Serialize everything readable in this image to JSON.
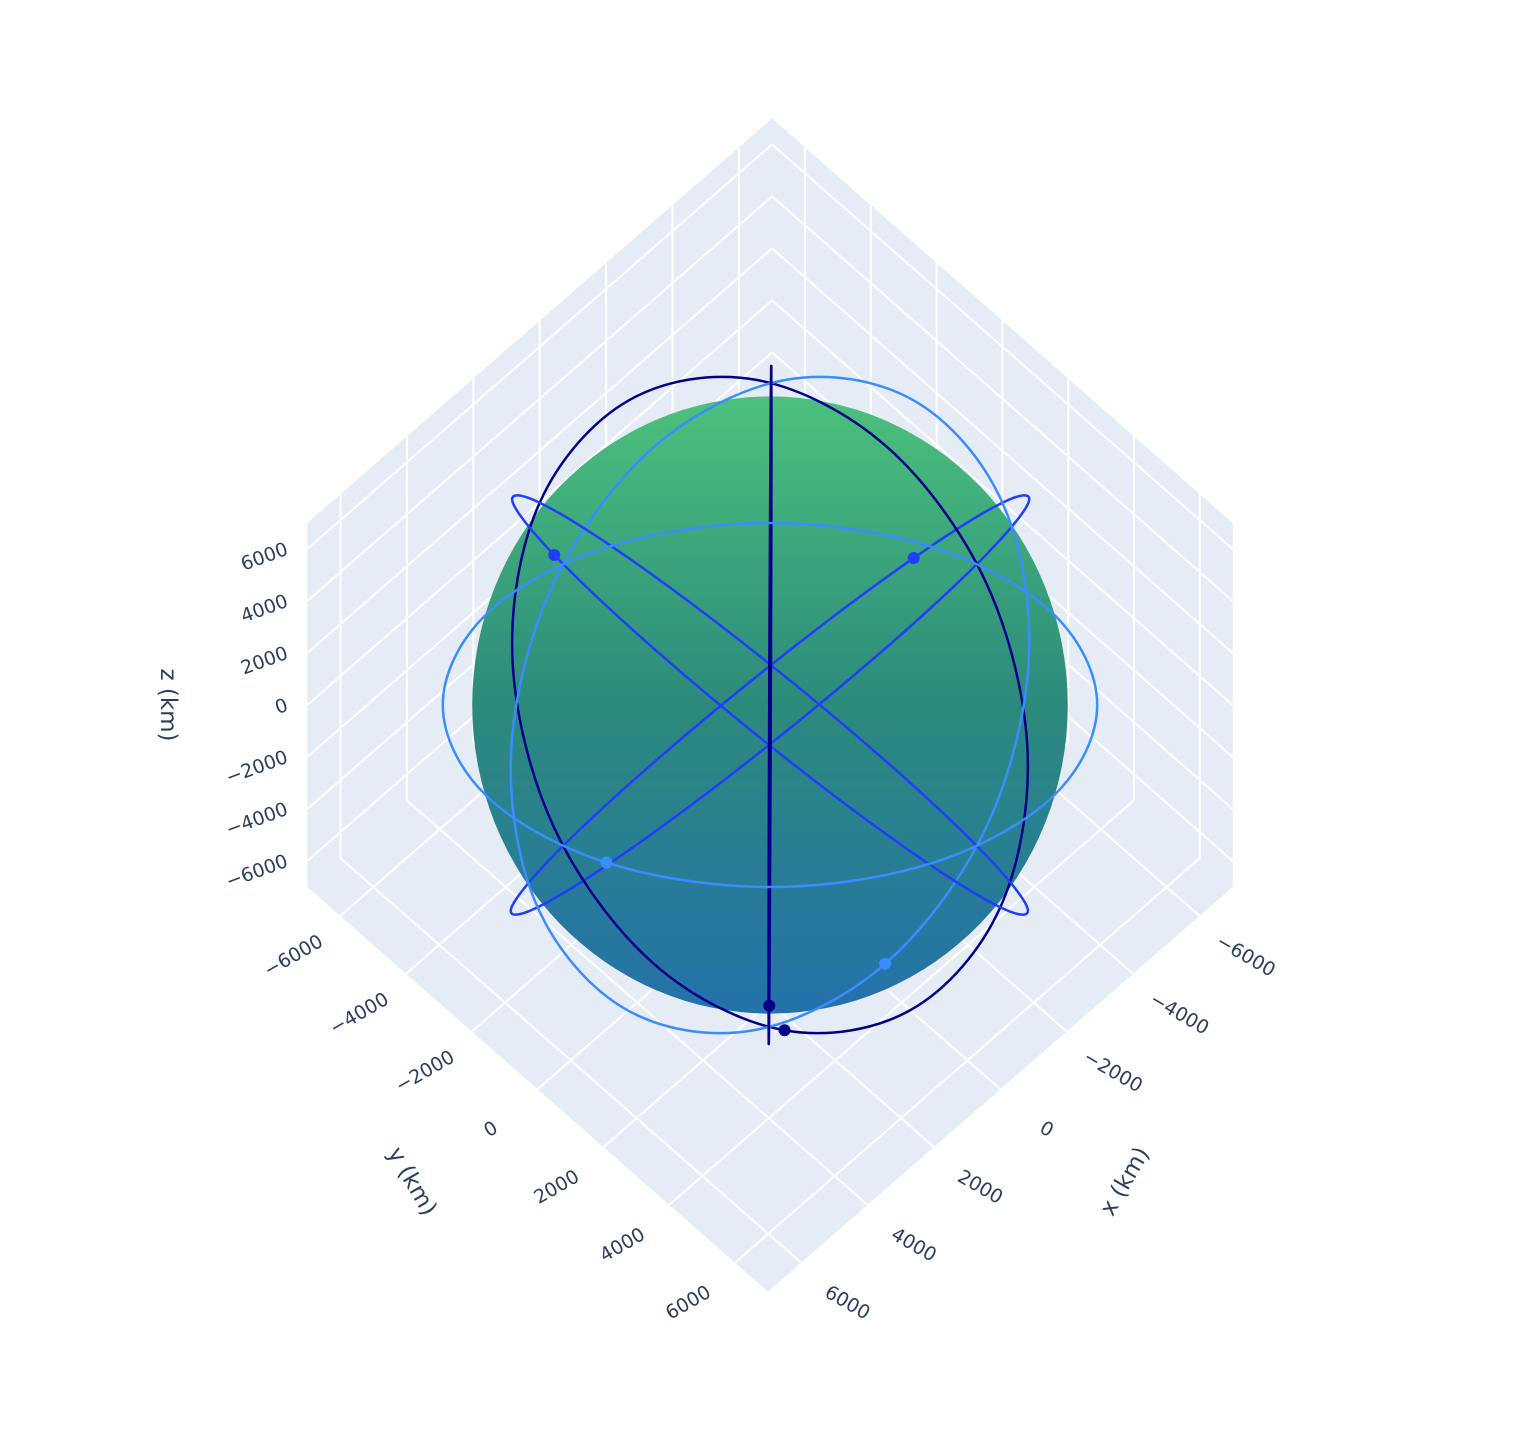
{
  "chart_data": {
    "type": "scatter3d",
    "xlabel": "x (km)",
    "ylabel": "y (km)",
    "zlabel": "z (km)",
    "xlim": [
      -7000,
      7000
    ],
    "ylim": [
      -7000,
      7000
    ],
    "zlim": [
      -7000,
      7000
    ],
    "xticks": [
      {
        "value": -6000,
        "label": "−6000"
      },
      {
        "value": -4000,
        "label": "−4000"
      },
      {
        "value": -2000,
        "label": "−2000"
      },
      0,
      2000,
      4000,
      6000
    ],
    "yticks": [
      {
        "value": -6000,
        "label": "−6000"
      },
      {
        "value": -4000,
        "label": "−4000"
      },
      {
        "value": -2000,
        "label": "−2000"
      },
      0,
      2000,
      4000,
      6000
    ],
    "zticks": [
      {
        "value": -6000,
        "label": "−6000"
      },
      {
        "value": -4000,
        "label": "−4000"
      },
      {
        "value": -2000,
        "label": "−2000"
      },
      0,
      2000,
      4000,
      6000
    ],
    "grid": true,
    "sphere_radius": 6371,
    "sphere_colors": [
      "#4cc17c",
      "#2c8a7c",
      "#2471ab"
    ],
    "series": [
      {
        "color": "#1f3dff",
        "x": [
          7000,
          6062,
          3500,
          0,
          -3500,
          -6062,
          -7000,
          -6062,
          -3500,
          0,
          3500,
          6062
        ],
        "y": [
          0,
          1750,
          3031,
          3500,
          3031,
          1750,
          0,
          -1750,
          -3031,
          -3500,
          -3031,
          -1750
        ],
        "z": [
          0,
          3031,
          5250,
          6062,
          5250,
          3031,
          0,
          -3031,
          -5250,
          -6062,
          -5250,
          -3031
        ]
      },
      {
        "color": "#00008b",
        "x": [
          0,
          -1750,
          -3031,
          -3500,
          -3031,
          -1750,
          0,
          1750,
          3031,
          3500,
          3031,
          1750
        ],
        "y": [
          7000,
          6062,
          3500,
          0,
          -3500,
          -6062,
          -7000,
          -6062,
          -3500,
          0,
          3500,
          6062
        ],
        "z": [
          0,
          3031,
          5250,
          6062,
          5250,
          3031,
          0,
          -3031,
          -5250,
          -6062,
          -5250,
          -3031
        ]
      },
      {
        "color": "#3a8dff",
        "x": [
          -7000,
          -6062,
          -3500,
          0,
          3500,
          6062,
          7000,
          6062,
          3500,
          0,
          -3500,
          -6062
        ],
        "y": [
          0,
          -1750,
          -3031,
          -3500,
          -3031,
          -1750,
          0,
          1750,
          3031,
          3500,
          3031,
          1750
        ],
        "z": [
          0,
          3031,
          5250,
          6062,
          5250,
          3031,
          0,
          -3031,
          -5250,
          -6062,
          -5250,
          -3031
        ]
      },
      {
        "color": "#1f3dff",
        "x": [
          0,
          1750,
          3031,
          3500,
          3031,
          1750,
          0,
          -1750,
          -3031,
          -3500,
          -3031,
          -1750
        ],
        "y": [
          -7000,
          -6062,
          -3500,
          0,
          3500,
          6062,
          7000,
          6062,
          3500,
          0,
          -3500,
          -6062
        ],
        "z": [
          0,
          3031,
          5250,
          6062,
          5250,
          3031,
          0,
          -3031,
          -5250,
          -6062,
          -5250,
          -3031
        ]
      },
      {
        "color": "#00008b",
        "x": [
          4950,
          4287,
          2475,
          0,
          -2475,
          -4287,
          -4950,
          -4287,
          -2475,
          0,
          2475,
          4287
        ],
        "y": [
          4950,
          4287,
          2475,
          0,
          -2475,
          -4287,
          -4950,
          -4287,
          -2475,
          0,
          2475,
          4287
        ],
        "z": [
          0,
          3500,
          6062,
          7000,
          6062,
          3500,
          0,
          -3500,
          -6062,
          -7000,
          -6062,
          -3500
        ]
      },
      {
        "color": "#3a8dff",
        "x": [
          -4950,
          -4287,
          -2475,
          0,
          2475,
          4287,
          4950,
          4287,
          2475,
          0,
          -2475,
          -4287
        ],
        "y": [
          4950,
          4287,
          2475,
          0,
          -2475,
          -4287,
          -4950,
          -4287,
          -2475,
          0,
          2475,
          4287
        ],
        "z": [
          0,
          3500,
          6062,
          7000,
          6062,
          3500,
          0,
          -3500,
          -6062,
          -7000,
          -6062,
          -3500
        ]
      }
    ],
    "markers": {
      "x": [
        -6062,
        3031,
        0,
        3031,
        2475,
        2475
      ],
      "y": [
        -1750,
        3500,
        3500,
        -3500,
        2475,
        -2475
      ],
      "z": [
        -3031,
        -5250,
        -6062,
        5250,
        -6062,
        -6062
      ],
      "colors": [
        "#1f3dff",
        "#00008b",
        "#3a8dff",
        "#1f3dff",
        "#00008b",
        "#3a8dff"
      ]
    }
  }
}
